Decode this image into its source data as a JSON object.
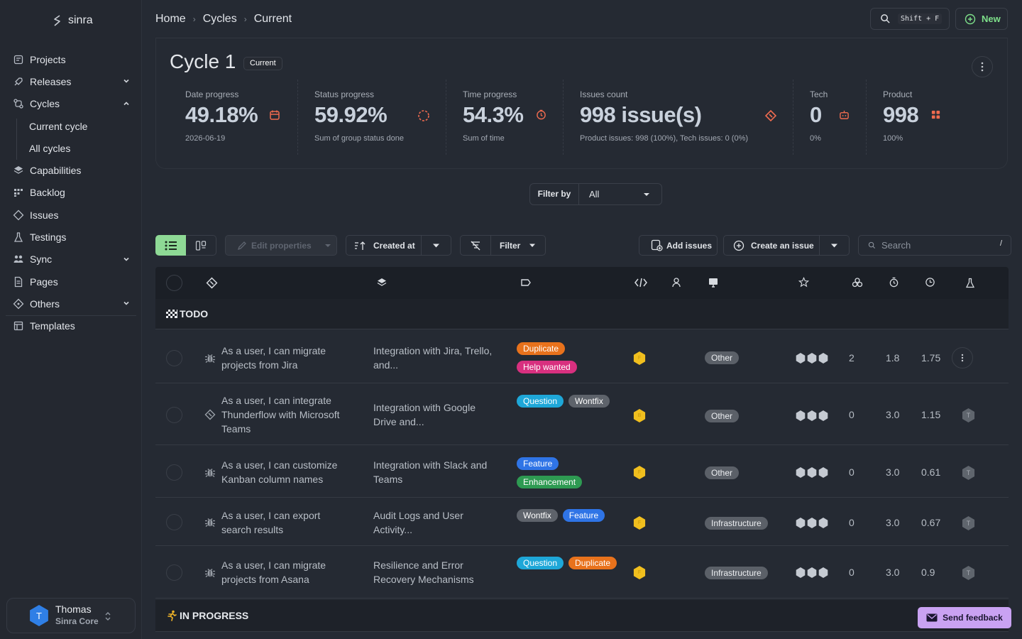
{
  "app": {
    "name": "sinra"
  },
  "sidebar": {
    "items": [
      {
        "label": "Projects",
        "icon": "projects-icon"
      },
      {
        "label": "Releases",
        "icon": "releases-icon",
        "chevron": "down"
      },
      {
        "label": "Cycles",
        "icon": "cycles-icon",
        "chevron": "up"
      },
      {
        "label": "Current cycle",
        "sub": true
      },
      {
        "label": "All cycles",
        "sub": true
      },
      {
        "label": "Capabilities",
        "icon": "layers-icon"
      },
      {
        "label": "Backlog",
        "icon": "backlog-icon"
      },
      {
        "label": "Issues",
        "icon": "ticket-icon"
      },
      {
        "label": "Testings",
        "icon": "flask-icon"
      },
      {
        "label": "Sync",
        "icon": "sync-icon",
        "chevron": "down"
      },
      {
        "label": "Pages",
        "icon": "pages-icon"
      },
      {
        "label": "Others",
        "icon": "others-icon",
        "chevron": "down"
      },
      {
        "label": "Templates",
        "icon": "templates-icon"
      }
    ],
    "user": {
      "initial": "T",
      "name": "Thomas",
      "org": "Sinra Core"
    }
  },
  "header": {
    "breadcrumb": [
      "Home",
      "Cycles",
      "Current"
    ],
    "search_shortcut": "Shift + F",
    "new_label": "New"
  },
  "cycle": {
    "title": "Cycle 1",
    "badge": "Current",
    "stats": [
      {
        "label": "Date progress",
        "value": "49.18%",
        "sub": "2026-06-19",
        "icon": "calendar-icon"
      },
      {
        "label": "Status progress",
        "value": "59.92%",
        "sub": "Sum of group status done",
        "icon": "spinner-icon"
      },
      {
        "label": "Time progress",
        "value": "54.3%",
        "sub": "Sum of time",
        "icon": "clock-icon"
      },
      {
        "label": "Issues count",
        "value": "998 issue(s)",
        "sub": "Product issues: 998 (100%), Tech issues: 0 (0%)",
        "icon": "ticket-icon"
      },
      {
        "label": "Tech",
        "value": "0",
        "sub": "0%",
        "icon": "robot-icon"
      },
      {
        "label": "Product",
        "value": "998",
        "sub": "100%",
        "icon": "grid-icon"
      }
    ]
  },
  "filter_by": {
    "label": "Filter by",
    "value": "All"
  },
  "toolbar": {
    "edit_properties": "Edit properties",
    "sort_label": "Created at",
    "filter_label": "Filter",
    "add_issues": "Add issues",
    "create_issue": "Create an issue",
    "search_placeholder": "Search",
    "search_shortcut": "/"
  },
  "groups": [
    {
      "icon": "checkered-flag-icon",
      "label": "TODO"
    },
    {
      "icon": "runner-icon",
      "label": "IN PROGRESS"
    }
  ],
  "rows": [
    {
      "type": "bug-icon",
      "title": "As a user, I can migrate projects from Jira",
      "capability": "Integration with Jira, Trello, and...",
      "tags": [
        "Duplicate",
        "Help wanted"
      ],
      "priority": "F",
      "domain": "Other",
      "count": "2",
      "estimate": "1.8",
      "time": "1.75"
    },
    {
      "type": "ticket-icon",
      "title": "As a user, I can integrate Thunderflow with Microsoft Teams",
      "capability": "Integration with Google Drive and...",
      "tags": [
        "Question",
        "Wontfix"
      ],
      "priority": "B",
      "domain": "Other",
      "count": "0",
      "estimate": "3.0",
      "time": "1.15"
    },
    {
      "type": "bug-icon",
      "title": "As a user, I can customize Kanban column names",
      "capability": "Integration with Slack and Teams",
      "tags": [
        "Feature",
        "Enhancement"
      ],
      "priority": "F",
      "domain": "Other",
      "count": "0",
      "estimate": "3.0",
      "time": "0.61"
    },
    {
      "type": "bug-icon",
      "title": "As a user, I can export search results",
      "capability": "Audit Logs and User Activity...",
      "tags": [
        "Wontfix",
        "Feature"
      ],
      "priority": "F",
      "domain": "Infrastructure",
      "count": "0",
      "estimate": "3.0",
      "time": "0.67"
    },
    {
      "type": "bug-icon",
      "title": "As a user, I can migrate projects from Asana",
      "capability": "Resilience and Error Recovery Mechanisms",
      "tags": [
        "Question",
        "Duplicate"
      ],
      "priority": "F",
      "domain": "Infrastructure",
      "count": "0",
      "estimate": "3.0",
      "time": "0.9"
    }
  ],
  "row_assignee_initial": "T",
  "tag_colors": {
    "Duplicate": "#e8721c",
    "Help wanted": "#d8307f",
    "Question": "#1ea7d8",
    "Wontfix": "#5e636b",
    "Feature": "#2f74e6",
    "Enhancement": "#2e9a52"
  },
  "feedback": {
    "label": "Send feedback"
  }
}
